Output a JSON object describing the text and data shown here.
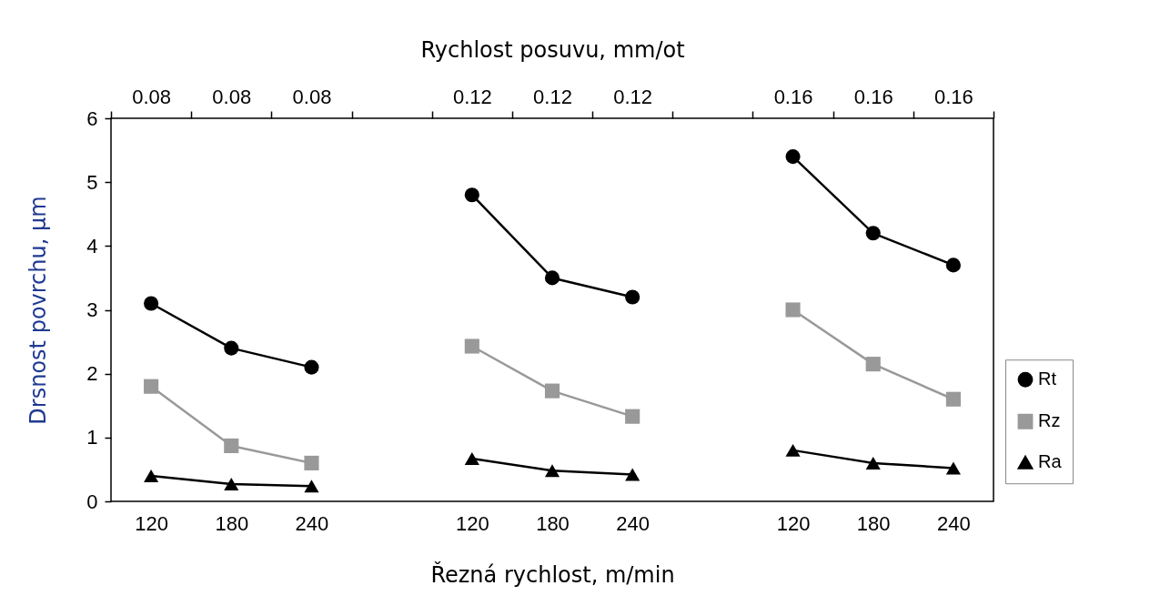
{
  "chart_data": {
    "type": "line",
    "xlabel": "Řezná rychlost, m/min",
    "ylabel": "Drsnost povrchu, μm",
    "x2label": "Rychlost posuvu, mm/ot",
    "categories": [
      "120",
      "180",
      "240",
      null,
      "120",
      "180",
      "240",
      null,
      "120",
      "180",
      "240"
    ],
    "annotations": [
      "0.08",
      "0.08",
      "0.08",
      "0.12",
      "0.12",
      "0.12",
      "0.16",
      "0.16",
      "0.16"
    ],
    "ylim": [
      0,
      6
    ],
    "yticks": [
      0,
      1,
      2,
      3,
      4,
      5,
      6
    ],
    "grid": false,
    "legend": "right",
    "line_style": "solid",
    "series": [
      {
        "name": "Rt",
        "color": "#000000",
        "marker": "circle",
        "values": [
          3.1,
          2.4,
          2.1,
          null,
          4.8,
          3.5,
          3.2,
          null,
          5.4,
          4.2,
          3.7
        ]
      },
      {
        "name": "Rz",
        "color": "#999999",
        "marker": "square",
        "values": [
          1.8,
          0.87,
          0.6,
          null,
          2.43,
          1.73,
          1.33,
          null,
          3.0,
          2.15,
          1.6
        ]
      },
      {
        "name": "Ra",
        "color": "#000000",
        "marker": "triangle",
        "values": [
          0.4,
          0.27,
          0.24,
          null,
          0.67,
          0.48,
          0.42,
          null,
          0.8,
          0.6,
          0.52
        ]
      }
    ]
  }
}
